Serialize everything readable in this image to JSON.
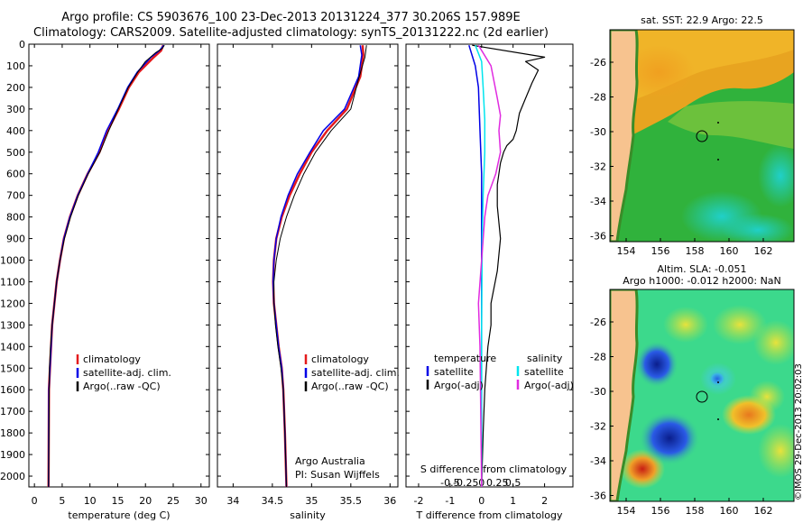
{
  "header": {
    "title_line1": "Argo profile: CS 5903676_100 23-Dec-2013 20131224_377 30.206S 157.989E",
    "title_line2": "Climatology: CARS2009. Satellite-adjusted climatology: synTS_20131222.nc (2d earlier)"
  },
  "colors": {
    "climatology": "#e41a1c",
    "satellite": "#0000e6",
    "argo": "#000000",
    "sat_s": "#00e5ee",
    "argo_s": "#e02be0"
  },
  "chart_data": [
    {
      "type": "line",
      "xlabel": "temperature (deg C)",
      "xlim": [
        -1,
        31.5
      ],
      "xticks": [
        0,
        5,
        10,
        15,
        20,
        25,
        30
      ],
      "ylim": [
        0,
        2050
      ],
      "yticks": [
        0,
        100,
        200,
        300,
        400,
        500,
        600,
        700,
        800,
        900,
        1000,
        1100,
        1200,
        1300,
        1400,
        1500,
        1600,
        1700,
        1800,
        1900,
        2000
      ],
      "legend": [
        "climatology",
        "satellite-adj. clim.",
        "Argo(..raw -QC)"
      ],
      "series": [
        {
          "name": "climatology",
          "x": [
            23.2,
            22.8,
            21.5,
            18.8,
            17.0,
            15.2,
            13.2,
            11.7,
            9.6,
            7.8,
            6.4,
            5.3,
            4.6,
            4.0,
            3.6,
            3.2,
            3.0,
            2.8,
            2.6,
            2.55
          ],
          "y": [
            5,
            30,
            60,
            130,
            200,
            300,
            400,
            500,
            600,
            700,
            800,
            900,
            1000,
            1100,
            1200,
            1300,
            1400,
            1500,
            1600,
            2050
          ]
        },
        {
          "name": "satellite-adj. clim.",
          "x": [
            23.3,
            22.5,
            21.0,
            18.5,
            16.8,
            15.0,
            13.0,
            11.5,
            9.6,
            7.8,
            6.4,
            5.3,
            4.6,
            4.0,
            3.6,
            3.2,
            3.0,
            2.8,
            2.6,
            2.55
          ],
          "y": [
            5,
            30,
            60,
            130,
            200,
            300,
            400,
            500,
            600,
            700,
            800,
            900,
            1000,
            1100,
            1200,
            1300,
            1400,
            1500,
            1600,
            2050
          ]
        },
        {
          "name": "Argo(..raw -QC)",
          "x": [
            23.4,
            23.0,
            21.8,
            20.0,
            18.6,
            16.9,
            15.1,
            13.4,
            11.8,
            9.7,
            7.9,
            6.5,
            5.4,
            4.6,
            4.0,
            3.6,
            3.2,
            2.9,
            2.7,
            2.55
          ],
          "y": [
            5,
            20,
            40,
            80,
            130,
            200,
            300,
            400,
            500,
            600,
            700,
            800,
            900,
            1000,
            1100,
            1200,
            1300,
            1400,
            1500,
            2050
          ]
        }
      ]
    },
    {
      "type": "line",
      "xlabel": "salinity",
      "xlim": [
        33.8,
        36.1
      ],
      "xticks": [
        34,
        34.5,
        35,
        35.5,
        36
      ],
      "ylim": [
        0,
        2050
      ],
      "legend": [
        "climatology",
        "satellite-adj. clim.",
        "Argo(..raw -QC)"
      ],
      "annotation": [
        "Argo Australia",
        "PI: Susan Wijffels"
      ],
      "series": [
        {
          "name": "climatology",
          "x": [
            35.65,
            35.66,
            35.62,
            35.45,
            35.2,
            35.0,
            34.85,
            34.72,
            34.62,
            34.55,
            34.52,
            34.51,
            34.52,
            34.55,
            34.58,
            34.62,
            34.64,
            34.66,
            34.68
          ],
          "y": [
            5,
            50,
            150,
            300,
            400,
            500,
            600,
            700,
            800,
            900,
            1000,
            1100,
            1200,
            1300,
            1400,
            1500,
            1600,
            1800,
            2050
          ]
        },
        {
          "name": "satellite-adj. clim.",
          "x": [
            35.62,
            35.64,
            35.6,
            35.42,
            35.15,
            34.98,
            34.82,
            34.7,
            34.61,
            34.55,
            34.52,
            34.51,
            34.52,
            34.55,
            34.58,
            34.62,
            34.64,
            34.66,
            34.68
          ],
          "y": [
            5,
            50,
            150,
            300,
            400,
            500,
            600,
            700,
            800,
            900,
            1000,
            1100,
            1200,
            1300,
            1400,
            1500,
            1600,
            1800,
            2050
          ]
        },
        {
          "name": "Argo(..raw -QC)",
          "x": [
            35.7,
            35.68,
            35.6,
            35.5,
            35.25,
            35.05,
            34.9,
            34.78,
            34.68,
            34.6,
            34.55,
            34.52,
            34.52,
            34.54,
            34.57,
            34.61,
            34.64,
            34.66,
            34.68
          ],
          "y": [
            5,
            60,
            160,
            300,
            400,
            500,
            600,
            700,
            800,
            900,
            1000,
            1100,
            1200,
            1300,
            1400,
            1500,
            1600,
            1800,
            2050
          ]
        }
      ]
    },
    {
      "type": "line",
      "xlabel": "T difference from climatology",
      "x2label": "S difference from climatology",
      "xlim": [
        -2.4,
        2.9
      ],
      "xticks": [
        -2,
        -1,
        0,
        1,
        2
      ],
      "x2ticks": [
        "-0.5",
        "-0.25",
        "0",
        "0.25",
        "0.5"
      ],
      "ylim": [
        0,
        2050
      ],
      "legend_left_title": "temperature",
      "legend_right_title": "salinity",
      "legend": [
        "satellite",
        "Argo(-adj)",
        "satellite",
        "Argo(-adj)"
      ],
      "series": [
        {
          "name": "satellite",
          "x": [
            -0.4,
            -0.2,
            -0.1,
            -0.05,
            0.0,
            0.0,
            0.0,
            0.0,
            0.0,
            0.0
          ],
          "y": [
            5,
            100,
            200,
            400,
            600,
            800,
            1000,
            1400,
            1800,
            2050
          ]
        },
        {
          "name": "Argo(-adj)",
          "x": [
            -0.3,
            2.0,
            1.4,
            1.8,
            1.6,
            1.4,
            1.2,
            1.1,
            1.0,
            0.8,
            0.7,
            0.6,
            0.5,
            0.5,
            0.6,
            0.5,
            0.3,
            0.3,
            0.2,
            0.1,
            0.05,
            0.0
          ],
          "y": [
            5,
            60,
            80,
            120,
            180,
            250,
            320,
            400,
            440,
            470,
            500,
            550,
            650,
            750,
            900,
            1050,
            1200,
            1300,
            1400,
            1600,
            1800,
            2050
          ]
        },
        {
          "name": "S satellite",
          "x": [
            -0.2,
            0.0,
            0.05,
            0.1,
            0.1,
            0.05,
            0.02,
            0.0,
            0.0,
            0.0
          ],
          "y": [
            5,
            80,
            200,
            350,
            500,
            700,
            900,
            1300,
            1700,
            2050
          ]
        },
        {
          "name": "S Argo(-adj)",
          "x": [
            -0.1,
            0.3,
            0.5,
            0.6,
            0.55,
            0.6,
            0.45,
            0.2,
            0.1,
            0.0,
            -0.1,
            -0.05,
            0.0
          ],
          "y": [
            5,
            100,
            250,
            330,
            400,
            500,
            600,
            700,
            800,
            1000,
            1200,
            1400,
            2050
          ]
        }
      ]
    }
  ],
  "maps": {
    "sst": {
      "title": "sat. SST: 22.9 Argo: 22.5",
      "lon_ticks": [
        "154",
        "156",
        "158",
        "160",
        "162"
      ],
      "lat_ticks": [
        "-26",
        "-28",
        "-30",
        "-32",
        "-34",
        "-36"
      ]
    },
    "sla": {
      "title1": "Altim. SLA: -0.051",
      "title2": "Argo h1000: -0.012 h2000: NaN",
      "lon_ticks": [
        "154",
        "156",
        "158",
        "160",
        "162"
      ],
      "lat_ticks": [
        "-26",
        "-28",
        "-30",
        "-32",
        "-34",
        "-36"
      ]
    }
  },
  "footer": {
    "stamp": "©IMOS 29-Dec-2013 20:02:03"
  }
}
